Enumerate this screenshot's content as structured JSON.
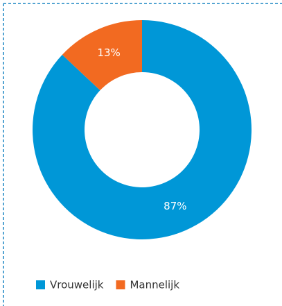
{
  "chart_data": {
    "type": "pie",
    "donut": true,
    "categories": [
      "Vrouwelijk",
      "Mannelijk"
    ],
    "values": [
      87,
      13
    ],
    "value_labels": [
      "87%",
      "13%"
    ],
    "colors": [
      "#0097d7",
      "#f26a21"
    ]
  }
}
